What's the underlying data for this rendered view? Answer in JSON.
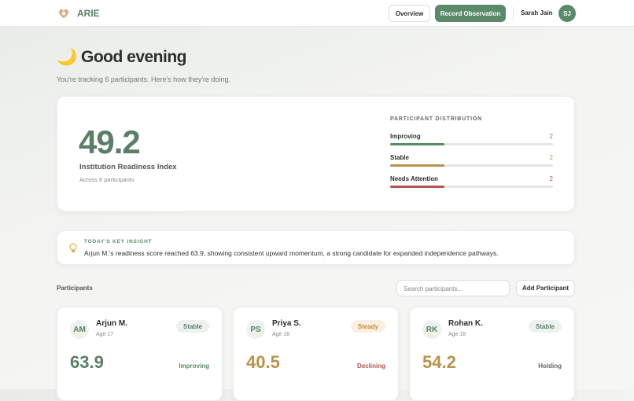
{
  "header": {
    "brand": "ARIE",
    "nav": [
      "Overview",
      "Record Observation"
    ],
    "user": "Sarah Jain",
    "initials": "SJ"
  },
  "greeting": {
    "title": "🌙 Good evening",
    "subtitle": "You're tracking 6 participants. Here's how they're doing."
  },
  "summary": {
    "index": 49.2,
    "index_label": "Institution Readiness Index",
    "caption": "Across 6 participants",
    "distribution_title": "PARTICIPANT DISTRIBUTION",
    "distribution": [
      {
        "label": "Improving",
        "count": 2
      },
      {
        "label": "Stable",
        "count": 2
      },
      {
        "label": "Needs Attention",
        "count": 2
      }
    ]
  },
  "insight": {
    "title": "TODAY'S KEY INSIGHT",
    "text": "Arjun M.'s readiness score reached 63.9, showing consistent upward momentum, a strong candidate for expanded independence pathways."
  },
  "participants": {
    "title": "Participants",
    "search_placeholder": "Search participants...",
    "add": "Add Participant",
    "cards": [
      {
        "initials": "AM",
        "name": "Arjun M.",
        "age": "Age 17",
        "status": "Stable",
        "score": 63.9,
        "trend": "Improving"
      },
      {
        "initials": "PS",
        "name": "Priya S.",
        "age": "Age 16",
        "status": "Steady",
        "score": 40.5,
        "trend": "Declining"
      },
      {
        "initials": "RK",
        "name": "Rohan K.",
        "age": "Age 18",
        "status": "Stable",
        "score": 54.2,
        "trend": "Holding"
      }
    ]
  }
}
